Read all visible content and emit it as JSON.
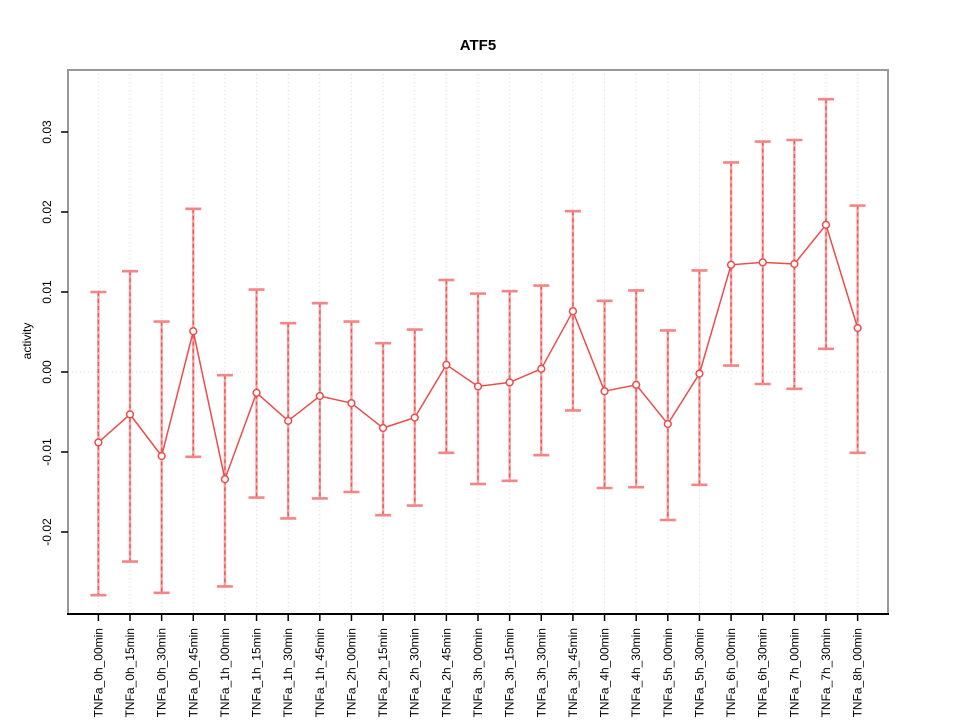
{
  "title": "ATF5",
  "ylabel": "activity",
  "colors": {
    "series_red": "#ee4b4b",
    "errorbar_pink": "#f7a2a2",
    "errorbar_cap": "#f58585",
    "grid_gray": "#dcdcdc",
    "box_gray": "#999999",
    "axis_black": "#000000",
    "point_fill": "#ffffff"
  },
  "chart_data": {
    "type": "line",
    "subtype": "points-with-error-bars",
    "title": "ATF5",
    "xlabel": "",
    "ylabel": "activity",
    "legend": "none",
    "grid": "vertical dotted gridlines at each category; dotted horizontal line at y=0",
    "ylim": [
      -0.0304,
      0.0366
    ],
    "yticks": [
      0.03,
      0.02,
      0.01,
      0.0,
      -0.01,
      -0.02
    ],
    "categories": [
      "TNFa_0h_00min",
      "TNFa_0h_15min",
      "TNFa_0h_30min",
      "TNFa_0h_45min",
      "TNFa_1h_00min",
      "TNFa_1h_15min",
      "TNFa_1h_30min",
      "TNFa_1h_45min",
      "TNFa_2h_00min",
      "TNFa_2h_15min",
      "TNFa_2h_30min",
      "TNFa_2h_45min",
      "TNFa_3h_00min",
      "TNFa_3h_15min",
      "TNFa_3h_30min",
      "TNFa_3h_45min",
      "TNFa_4h_00min",
      "TNFa_4h_30min",
      "TNFa_5h_00min",
      "TNFa_5h_30min",
      "TNFa_6h_00min",
      "TNFa_6h_30min",
      "TNFa_7h_00min",
      "TNFa_7h_30min",
      "TNFa_8h_00min"
    ],
    "series": [
      {
        "name": "activity",
        "values": [
          -0.0088,
          -0.0053,
          -0.0105,
          0.0051,
          -0.0134,
          -0.0026,
          -0.0061,
          -0.003,
          -0.0039,
          -0.007,
          -0.0057,
          0.0009,
          -0.0018,
          -0.0013,
          0.0004,
          0.0076,
          -0.0024,
          -0.0016,
          -0.0065,
          -0.0002,
          0.0134,
          0.0137,
          0.0135,
          0.0184,
          0.0055
        ],
        "upper": [
          0.01,
          0.0126,
          0.0063,
          0.0204,
          -0.0004,
          0.0103,
          0.0061,
          0.0086,
          0.0063,
          0.0036,
          0.0053,
          0.0115,
          0.0098,
          0.0101,
          0.0108,
          0.0201,
          0.0089,
          0.0102,
          0.0052,
          0.0127,
          0.0262,
          0.0288,
          0.029,
          0.0341,
          0.0208
        ],
        "lower": [
          -0.0279,
          -0.0237,
          -0.0276,
          -0.0106,
          -0.0268,
          -0.0157,
          -0.0183,
          -0.0158,
          -0.015,
          -0.0179,
          -0.0167,
          -0.0101,
          -0.014,
          -0.0136,
          -0.0104,
          -0.0048,
          -0.0145,
          -0.0144,
          -0.0185,
          -0.0141,
          0.0008,
          -0.0015,
          -0.0021,
          0.0029,
          -0.0101
        ]
      }
    ]
  }
}
